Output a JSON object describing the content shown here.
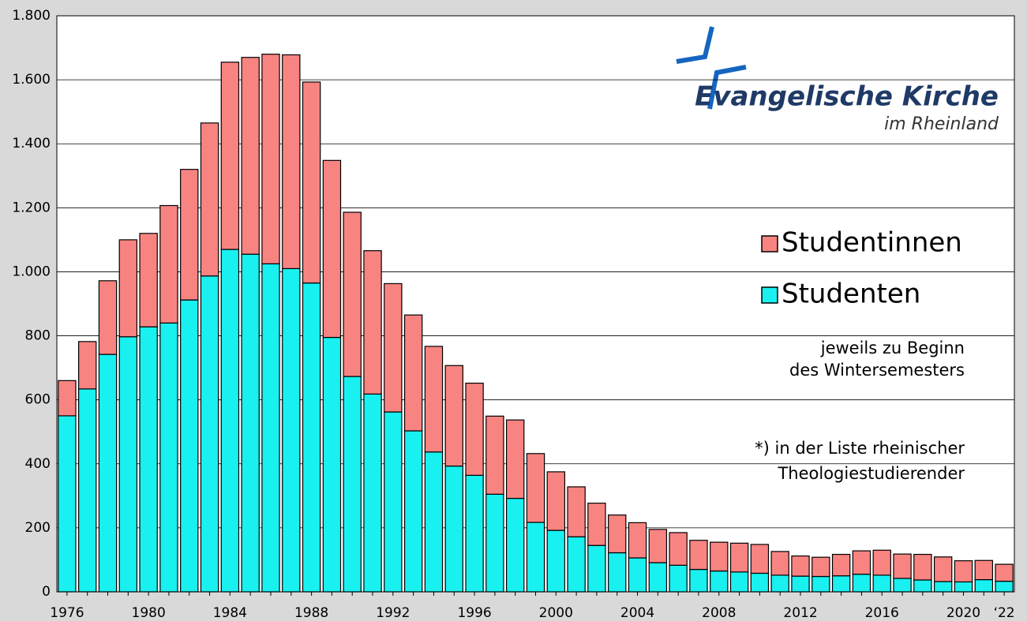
{
  "chart_data": {
    "type": "stacked_bar",
    "categories": [
      "1976",
      null,
      null,
      null,
      "1980",
      null,
      null,
      null,
      "1984",
      null,
      null,
      null,
      "1988",
      null,
      null,
      null,
      "1992",
      null,
      null,
      null,
      "1996",
      null,
      null,
      null,
      "2000",
      null,
      null,
      null,
      "2004",
      null,
      null,
      null,
      "2008",
      null,
      null,
      null,
      "2012",
      null,
      null,
      null,
      "2016",
      null,
      null,
      null,
      "2020",
      null,
      "‘22"
    ],
    "series": [
      {
        "name": "Studenten",
        "color": "#19f0f0",
        "values": [
          550,
          634,
          742,
          797,
          828,
          840,
          912,
          987,
          1070,
          1055,
          1025,
          1010,
          965,
          795,
          673,
          618,
          562,
          503,
          437,
          393,
          364,
          305,
          292,
          217,
          192,
          172,
          145,
          122,
          106,
          91,
          83,
          70,
          65,
          62,
          58,
          52,
          49,
          48,
          50,
          55,
          52,
          42,
          37,
          32,
          31,
          38,
          33
        ]
      },
      {
        "name": "Studentinnen",
        "color": "#f88482",
        "values": [
          110,
          148,
          230,
          303,
          292,
          367,
          408,
          478,
          585,
          615,
          655,
          668,
          628,
          553,
          513,
          448,
          401,
          362,
          330,
          314,
          288,
          244,
          245,
          215,
          183,
          156,
          132,
          118,
          110,
          104,
          102,
          91,
          90,
          90,
          90,
          74,
          63,
          60,
          67,
          73,
          78,
          76,
          80,
          77,
          66,
          60,
          53
        ]
      }
    ],
    "ylim": [
      0,
      1800
    ],
    "yticks": [
      0,
      200,
      400,
      600,
      800,
      {
        "value": 1000,
        "label": "1.000"
      },
      {
        "value": 1200,
        "label": "1.200"
      },
      {
        "value": 1400,
        "label": "1.400"
      },
      {
        "value": 1600,
        "label": "1.600"
      },
      {
        "value": 1800,
        "label": "1.800"
      }
    ],
    "grid": true,
    "annotations": [
      [
        "jeweils zu Beginn",
        "des Wintersemesters"
      ],
      [
        "*) in der Liste rheinischer",
        "Theologiestudierender"
      ]
    ],
    "logo": {
      "name": "Evangelische Kirche",
      "region": "im Rheinland"
    }
  }
}
